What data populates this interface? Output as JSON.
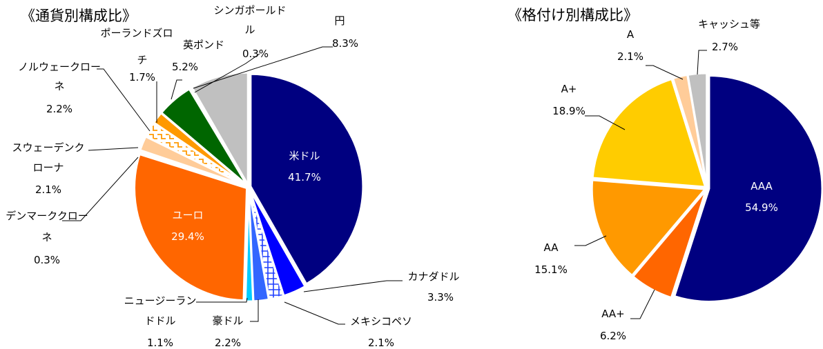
{
  "chart_data": [
    {
      "type": "pie",
      "title": "《通貨別構成比》",
      "slices": [
        {
          "name": "米ドル",
          "value": 41.7,
          "value_label": "41.7%",
          "color": "#000080"
        },
        {
          "name": "カナダドル",
          "value": 3.3,
          "value_label": "3.3%",
          "color": "#0000FF"
        },
        {
          "name": "メキシコペソ",
          "value": 2.1,
          "value_label": "2.1%",
          "color": "#FFFFFF",
          "pattern": "blue-cross"
        },
        {
          "name": "豪ドル",
          "value": 2.2,
          "value_label": "2.2%",
          "color": "#3366FF"
        },
        {
          "name": "ニュージーランドドル",
          "value": 1.1,
          "value_label": "1.1%",
          "color": "#00CCFF"
        },
        {
          "name": "ユーロ",
          "value": 29.4,
          "value_label": "29.4%",
          "color": "#FF6600"
        },
        {
          "name": "デンマーククローネ",
          "value": 0.3,
          "value_label": "0.3%",
          "color": "#FFCC99"
        },
        {
          "name": "スウェーデンクローナ",
          "value": 2.1,
          "value_label": "2.1%",
          "color": "#FFCC99"
        },
        {
          "name": "ノルウェークローネ",
          "value": 2.2,
          "value_label": "2.2%",
          "color": "#FFFFFF",
          "pattern": "orange-stairs"
        },
        {
          "name": "ポーランドズロチ",
          "value": 1.7,
          "value_label": "1.7%",
          "color": "#FF9900"
        },
        {
          "name": "英ポンド",
          "value": 5.2,
          "value_label": "5.2%",
          "color": "#006600"
        },
        {
          "name": "シンガポールドル",
          "value": 0.3,
          "value_label": "0.3%",
          "color": "#FFFFFF"
        },
        {
          "name": "円",
          "value": 8.3,
          "value_label": "8.3%",
          "color": "#C0C0C0"
        }
      ]
    },
    {
      "type": "pie",
      "title": "《格付け別構成比》",
      "slices": [
        {
          "name": "AAA",
          "value": 54.9,
          "value_label": "54.9%",
          "color": "#000080"
        },
        {
          "name": "AA+",
          "value": 6.2,
          "value_label": "6.2%",
          "color": "#FF6600"
        },
        {
          "name": "AA",
          "value": 15.1,
          "value_label": "15.1%",
          "color": "#FF9900"
        },
        {
          "name": "A+",
          "value": 18.9,
          "value_label": "18.9%",
          "color": "#FFCC00"
        },
        {
          "name": "A",
          "value": 2.1,
          "value_label": "2.1%",
          "color": "#FFCC99"
        },
        {
          "name": "キャッシュ等",
          "value": 2.7,
          "value_label": "2.7%",
          "color": "#C0C0C0"
        }
      ]
    }
  ]
}
